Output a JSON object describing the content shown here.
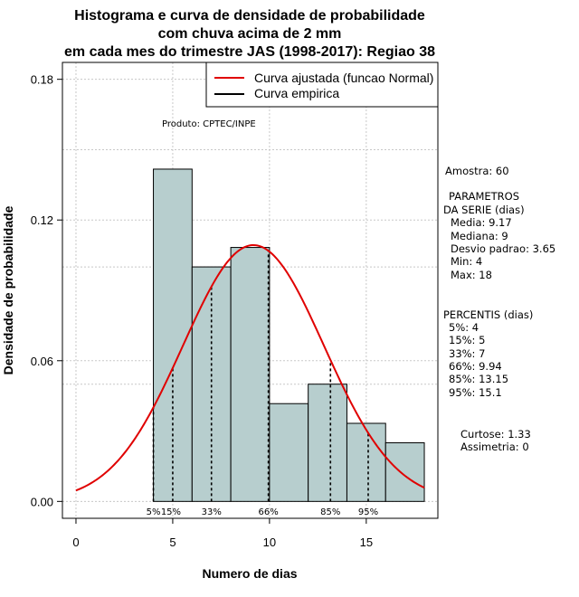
{
  "chart_data": {
    "type": "histogram",
    "title_lines": [
      "Histograma e curva de densidade de probabilidade",
      "com chuva acima de 2 mm",
      "em cada mes do trimestre JAS (1998-2017): Regiao 38"
    ],
    "xlabel": "Numero de dias",
    "ylabel": "Densidade de probabilidade",
    "xlim": [
      -0.7,
      18.7
    ],
    "ylim": [
      -0.0072,
      0.1872
    ],
    "x_ticks": [
      0,
      5,
      10,
      15
    ],
    "y_ticks": [
      0.0,
      0.06,
      0.12,
      0.18
    ],
    "y_tick_labels": [
      "0.00",
      "0.06",
      "0.12",
      "0.18"
    ],
    "grid": true,
    "bar_color": "#b7cece",
    "bins": [
      {
        "start": 4,
        "end": 6,
        "density": 0.1417
      },
      {
        "start": 6,
        "end": 8,
        "density": 0.1
      },
      {
        "start": 8,
        "end": 10,
        "density": 0.1083
      },
      {
        "start": 10,
        "end": 12,
        "density": 0.0417
      },
      {
        "start": 12,
        "end": 14,
        "density": 0.05
      },
      {
        "start": 14,
        "end": 16,
        "density": 0.0333
      },
      {
        "start": 16,
        "end": 18,
        "density": 0.025
      }
    ],
    "normal_fit": {
      "mean": 9.17,
      "sd": 3.65,
      "x_range": [
        0,
        18
      ],
      "color": "#e00000"
    },
    "percentile_lines": [
      {
        "label": "5%",
        "x": 4
      },
      {
        "label": "15%",
        "x": 5
      },
      {
        "label": "33%",
        "x": 7
      },
      {
        "label": "66%",
        "x": 9.94
      },
      {
        "label": "85%",
        "x": 13.15
      },
      {
        "label": "95%",
        "x": 15.1
      }
    ],
    "legend": {
      "placement": "top-right",
      "entries": [
        {
          "label": "Curva ajustada (funcao Normal)",
          "color": "#e00000"
        },
        {
          "label": "Curva empirica",
          "color": "#000000"
        }
      ]
    },
    "credit": "Produto: CPTEC/INPE"
  },
  "stats_panel": {
    "amostra": "Amostra: 60",
    "param_title_1": "PARAMETROS",
    "param_title_2": "DA SERIE (dias)",
    "media": "Media: 9.17",
    "mediana": "Mediana: 9",
    "desvio": "Desvio padrao: 3.65",
    "min": "Min: 4",
    "max": "Max: 18",
    "percentis_title": "PERCENTIS (dias)",
    "p5": "5%: 4",
    "p15": "15%: 5",
    "p33": "33%: 7",
    "p66": "66%: 9.94",
    "p85": "85%: 13.15",
    "p95": "95%: 15.1",
    "curtose": "Curtose: 1.33",
    "assimetria": "Assimetria: 0"
  }
}
